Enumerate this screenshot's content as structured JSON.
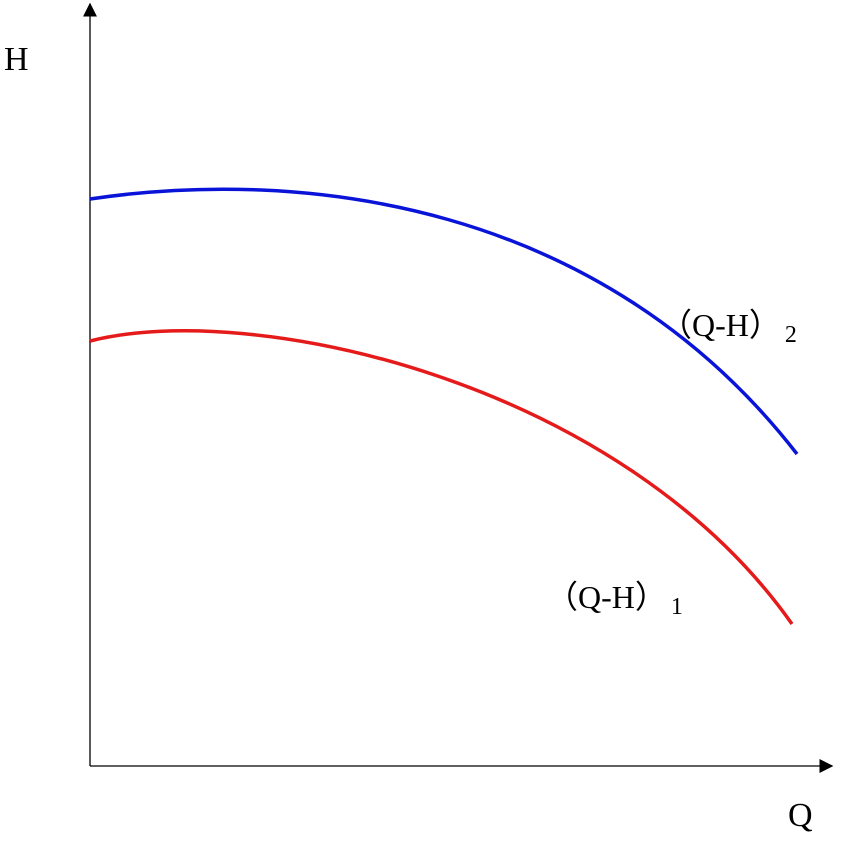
{
  "axes": {
    "y_label": "H",
    "x_label": "Q"
  },
  "curves": [
    {
      "label": "（Q-H）",
      "subscript": "1"
    },
    {
      "label": "（Q-H）",
      "subscript": "2"
    }
  ]
}
